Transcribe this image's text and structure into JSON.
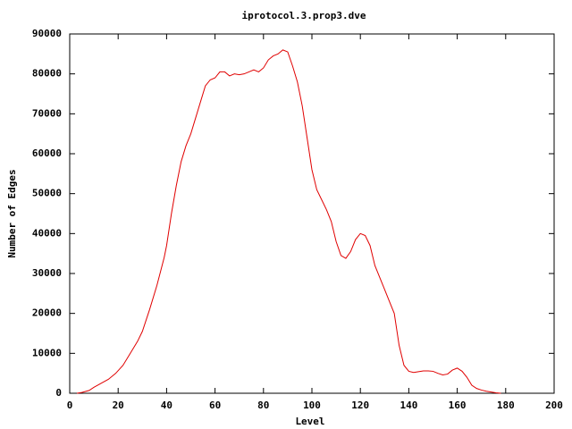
{
  "chart_data": {
    "type": "line",
    "title": "iprotocol.3.prop3.dve",
    "x_label": "Level",
    "y_label": "Number of Edges",
    "color": "#e00000",
    "x": [
      3,
      5,
      8,
      10,
      13,
      16,
      19,
      22,
      25,
      28,
      30,
      33,
      36,
      39,
      40,
      42,
      44,
      46,
      48,
      50,
      52,
      54,
      56,
      58,
      60,
      62,
      64,
      66,
      68,
      70,
      72,
      74,
      76,
      78,
      80,
      82,
      84,
      86,
      88,
      90,
      92,
      94,
      96,
      98,
      100,
      102,
      104,
      106,
      108,
      110,
      112,
      114,
      116,
      118,
      120,
      122,
      124,
      126,
      128,
      130,
      132,
      134,
      136,
      138,
      140,
      142,
      144,
      146,
      148,
      150,
      152,
      154,
      156,
      158,
      160,
      162,
      164,
      166,
      168,
      170,
      172,
      174,
      176,
      178
    ],
    "values": [
      0,
      200,
      700,
      1500,
      2500,
      3500,
      5000,
      7000,
      10000,
      13000,
      15500,
      21000,
      27000,
      34000,
      37000,
      45000,
      52000,
      58000,
      62000,
      65000,
      69000,
      73000,
      77000,
      78500,
      79000,
      80500,
      80500,
      79500,
      80000,
      79800,
      80000,
      80500,
      81000,
      80500,
      81500,
      83500,
      84500,
      85000,
      86000,
      85500,
      82000,
      78000,
      72000,
      64000,
      56000,
      51000,
      48500,
      46000,
      43000,
      38000,
      34500,
      33800,
      35500,
      38500,
      40000,
      39500,
      37000,
      32000,
      29000,
      26000,
      23000,
      20000,
      12000,
      7000,
      5500,
      5200,
      5400,
      5600,
      5600,
      5500,
      5000,
      4600,
      4800,
      5800,
      6300,
      5500,
      4000,
      2000,
      1200,
      800,
      500,
      300,
      100,
      0
    ],
    "xlim": [
      0,
      200
    ],
    "xticks": [
      0,
      20,
      40,
      60,
      80,
      100,
      120,
      140,
      160,
      180,
      200
    ],
    "ylim": [
      0,
      90000
    ],
    "yticks": [
      0,
      10000,
      20000,
      30000,
      40000,
      50000,
      60000,
      70000,
      80000,
      90000
    ]
  }
}
